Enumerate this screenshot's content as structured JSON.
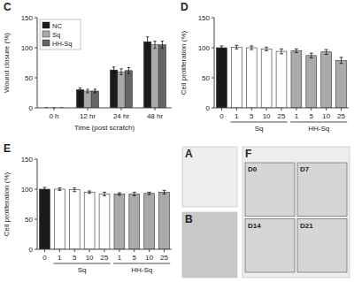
{
  "chart_data": [
    {
      "type": "image",
      "title": "A"
    },
    {
      "type": "image",
      "title": "B"
    },
    {
      "type": "bar",
      "title": "C",
      "xlabel": "Time (post scratch)",
      "ylabel": "Wound closure (%)",
      "categories": [
        "0 h",
        "12 hr",
        "24 hr",
        "48 hr"
      ],
      "series": [
        {
          "name": "NC",
          "color": "#1a1a1a",
          "values": [
            0,
            30,
            63,
            110
          ],
          "errors": [
            0,
            3,
            5,
            8
          ]
        },
        {
          "name": "Sq",
          "color": "#aaaaaa",
          "values": [
            0,
            28,
            60,
            105
          ],
          "errors": [
            0,
            3,
            5,
            6
          ]
        },
        {
          "name": "HH-Sq",
          "color": "#666666",
          "values": [
            0,
            28,
            62,
            105
          ],
          "errors": [
            0,
            3,
            5,
            6
          ]
        }
      ],
      "ylim": [
        0,
        150
      ],
      "yticks": [
        0,
        50,
        100,
        150
      ],
      "legend": "upper left"
    },
    {
      "type": "bar",
      "title": "D",
      "ylabel": "Cell proliferation (%)",
      "categories": [
        "0",
        "1",
        "5",
        "10",
        "25",
        "1",
        "5",
        "10",
        "25"
      ],
      "values": [
        100,
        101,
        100,
        98,
        94,
        95,
        87,
        93,
        79
      ],
      "errors": [
        3,
        3,
        3,
        3,
        4,
        3,
        4,
        4,
        5
      ],
      "colors": [
        "#1a1a1a",
        "#ffffff",
        "#ffffff",
        "#ffffff",
        "#ffffff",
        "#aaaaaa",
        "#aaaaaa",
        "#aaaaaa",
        "#aaaaaa"
      ],
      "annotations": [
        "Sq",
        "HH-Sq"
      ],
      "ylim": [
        0,
        150
      ],
      "yticks": [
        0,
        50,
        100,
        150
      ]
    },
    {
      "type": "bar",
      "title": "E",
      "ylabel": "Cell proliferation (%)",
      "categories": [
        "0",
        "1",
        "5",
        "10",
        "25",
        "1",
        "5",
        "10",
        "25"
      ],
      "values": [
        100,
        100,
        99,
        95,
        92,
        92,
        92,
        93,
        95
      ],
      "errors": [
        3,
        2,
        3,
        2,
        3,
        2,
        3,
        2,
        3
      ],
      "colors": [
        "#1a1a1a",
        "#ffffff",
        "#ffffff",
        "#ffffff",
        "#ffffff",
        "#aaaaaa",
        "#aaaaaa",
        "#aaaaaa",
        "#aaaaaa"
      ],
      "annotations": [
        "Sq",
        "HH-Sq"
      ],
      "ylim": [
        0,
        150
      ],
      "yticks": [
        0,
        50,
        100,
        150
      ]
    },
    {
      "type": "image",
      "title": "F",
      "annotations": [
        "D0",
        "D7",
        "D14",
        "D21"
      ]
    }
  ]
}
